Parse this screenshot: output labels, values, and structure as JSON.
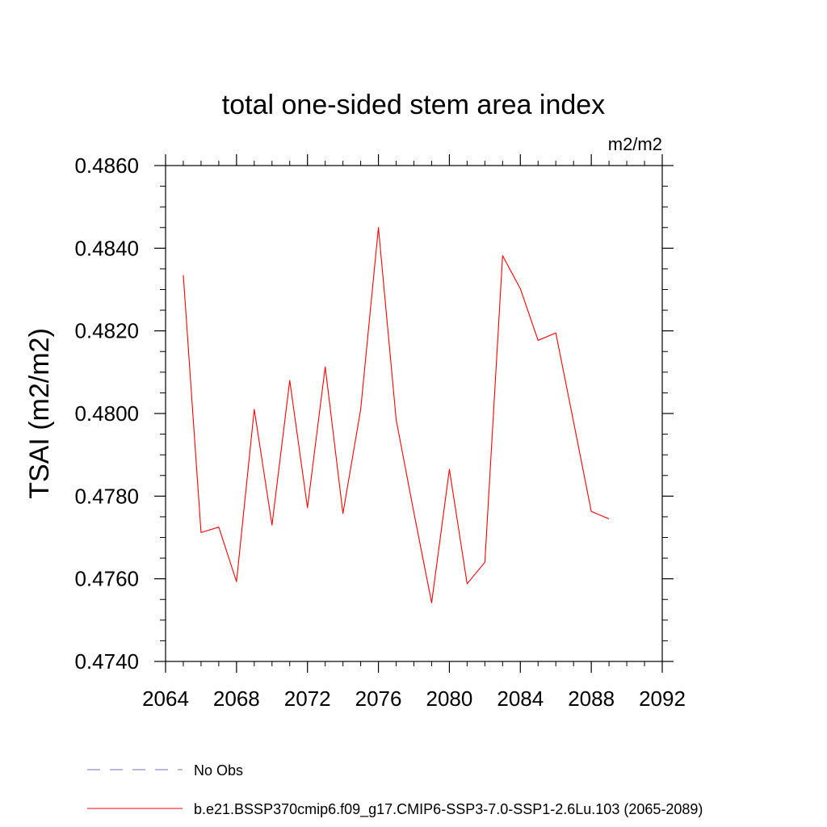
{
  "chart_data": {
    "type": "line",
    "title": "total one-sided stem area index",
    "units": "m2/m2",
    "ylabel": "TSAI  (m2/m2)",
    "xlabel": "",
    "xlim": [
      2064,
      2092
    ],
    "ylim": [
      0.474,
      0.486
    ],
    "x_ticks": [
      "2064",
      "2068",
      "2072",
      "2076",
      "2080",
      "2084",
      "2088",
      "2092"
    ],
    "y_ticks": [
      "0.4740",
      "0.4760",
      "0.4780",
      "0.4800",
      "0.4820",
      "0.4840",
      "0.4860"
    ],
    "grid": false,
    "legend_position": "bottom",
    "series": [
      {
        "name": "b.e21.BSSP370cmip6.f09_g17.CMIP6-SSP3-7.0-SSP1-2.6Lu.103 (2065-2089)",
        "color": "#ff0000",
        "style": "solid",
        "x": [
          2065,
          2066,
          2067,
          2068,
          2069,
          2070,
          2071,
          2072,
          2073,
          2074,
          2075,
          2076,
          2077,
          2078,
          2079,
          2080,
          2081,
          2082,
          2083,
          2084,
          2085,
          2086,
          2087,
          2088,
          2089
        ],
        "y": [
          0.48335,
          0.47712,
          0.47725,
          0.47593,
          0.4801,
          0.4773,
          0.4808,
          0.47772,
          0.48113,
          0.47758,
          0.4801,
          0.4845,
          0.47985,
          0.4776,
          0.47542,
          0.47865,
          0.47588,
          0.4764,
          0.48382,
          0.48302,
          0.48177,
          0.48195,
          0.4798,
          0.47763,
          0.47745
        ]
      }
    ],
    "legend": [
      {
        "label": "No Obs",
        "color": "#7a6fb0",
        "style": "dashed"
      },
      {
        "label": "b.e21.BSSP370cmip6.f09_g17.CMIP6-SSP3-7.0-SSP1-2.6Lu.103 (2065-2089)",
        "color": "#ff0000",
        "style": "solid"
      }
    ]
  }
}
